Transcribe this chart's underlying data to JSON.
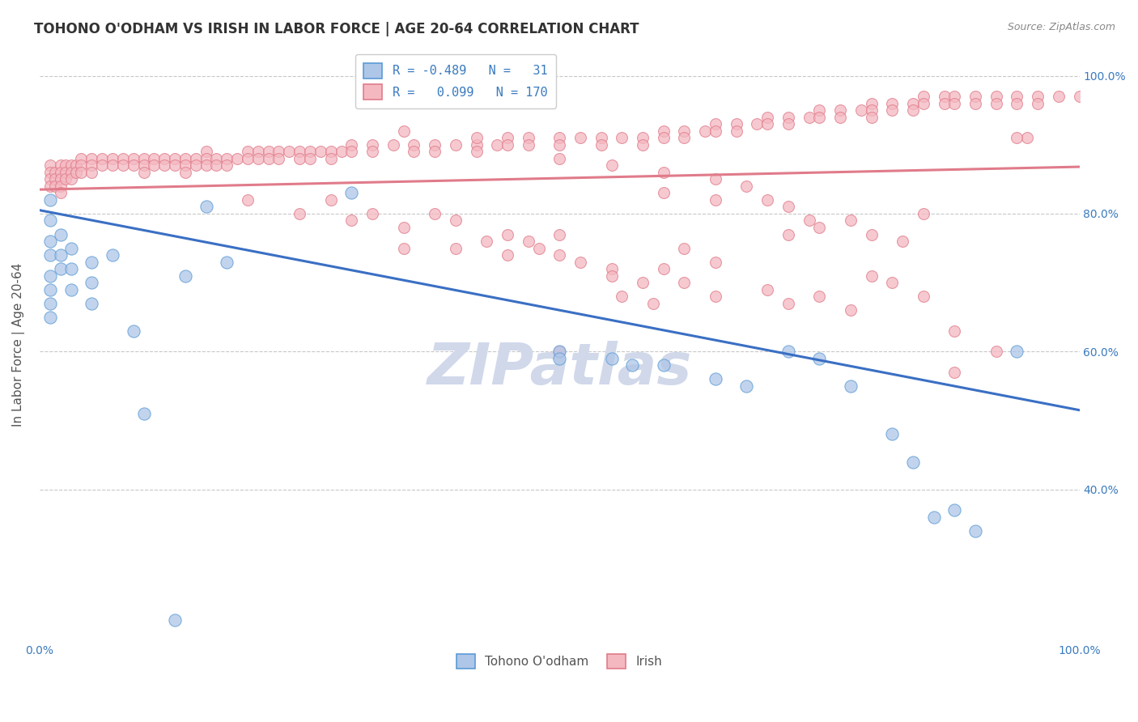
{
  "title": "TOHONO O'ODHAM VS IRISH IN LABOR FORCE | AGE 20-64 CORRELATION CHART",
  "source": "Source: ZipAtlas.com",
  "ylabel": "In Labor Force | Age 20-64",
  "xlim": [
    0.0,
    1.0
  ],
  "ylim": [
    0.18,
    1.04
  ],
  "yticks": [
    0.4,
    0.6,
    0.8,
    1.0
  ],
  "ytick_labels": [
    "40.0%",
    "60.0%",
    "80.0%",
    "100.0%"
  ],
  "watermark": "ZIPatlas",
  "blue_scatter": [
    [
      0.01,
      0.82
    ],
    [
      0.01,
      0.79
    ],
    [
      0.01,
      0.76
    ],
    [
      0.01,
      0.74
    ],
    [
      0.01,
      0.71
    ],
    [
      0.01,
      0.69
    ],
    [
      0.01,
      0.67
    ],
    [
      0.01,
      0.65
    ],
    [
      0.02,
      0.77
    ],
    [
      0.02,
      0.74
    ],
    [
      0.02,
      0.72
    ],
    [
      0.03,
      0.75
    ],
    [
      0.03,
      0.72
    ],
    [
      0.03,
      0.69
    ],
    [
      0.05,
      0.73
    ],
    [
      0.05,
      0.7
    ],
    [
      0.05,
      0.67
    ],
    [
      0.07,
      0.74
    ],
    [
      0.09,
      0.63
    ],
    [
      0.1,
      0.51
    ],
    [
      0.14,
      0.71
    ],
    [
      0.16,
      0.81
    ],
    [
      0.18,
      0.73
    ],
    [
      0.3,
      0.83
    ],
    [
      0.13,
      0.21
    ],
    [
      0.5,
      0.6
    ],
    [
      0.5,
      0.59
    ],
    [
      0.55,
      0.59
    ],
    [
      0.57,
      0.58
    ],
    [
      0.6,
      0.58
    ],
    [
      0.65,
      0.56
    ],
    [
      0.68,
      0.55
    ],
    [
      0.72,
      0.6
    ],
    [
      0.75,
      0.59
    ],
    [
      0.78,
      0.55
    ],
    [
      0.82,
      0.48
    ],
    [
      0.84,
      0.44
    ],
    [
      0.86,
      0.36
    ],
    [
      0.88,
      0.37
    ],
    [
      0.9,
      0.34
    ],
    [
      0.94,
      0.6
    ]
  ],
  "pink_scatter": [
    [
      0.01,
      0.87
    ],
    [
      0.01,
      0.86
    ],
    [
      0.01,
      0.85
    ],
    [
      0.01,
      0.84
    ],
    [
      0.015,
      0.86
    ],
    [
      0.015,
      0.85
    ],
    [
      0.015,
      0.84
    ],
    [
      0.02,
      0.87
    ],
    [
      0.02,
      0.86
    ],
    [
      0.02,
      0.85
    ],
    [
      0.02,
      0.84
    ],
    [
      0.02,
      0.83
    ],
    [
      0.025,
      0.87
    ],
    [
      0.025,
      0.86
    ],
    [
      0.025,
      0.85
    ],
    [
      0.03,
      0.87
    ],
    [
      0.03,
      0.86
    ],
    [
      0.03,
      0.85
    ],
    [
      0.035,
      0.87
    ],
    [
      0.035,
      0.86
    ],
    [
      0.04,
      0.88
    ],
    [
      0.04,
      0.87
    ],
    [
      0.04,
      0.86
    ],
    [
      0.05,
      0.88
    ],
    [
      0.05,
      0.87
    ],
    [
      0.05,
      0.86
    ],
    [
      0.06,
      0.88
    ],
    [
      0.06,
      0.87
    ],
    [
      0.07,
      0.88
    ],
    [
      0.07,
      0.87
    ],
    [
      0.08,
      0.88
    ],
    [
      0.08,
      0.87
    ],
    [
      0.09,
      0.88
    ],
    [
      0.09,
      0.87
    ],
    [
      0.1,
      0.88
    ],
    [
      0.1,
      0.87
    ],
    [
      0.1,
      0.86
    ],
    [
      0.11,
      0.88
    ],
    [
      0.11,
      0.87
    ],
    [
      0.12,
      0.88
    ],
    [
      0.12,
      0.87
    ],
    [
      0.13,
      0.88
    ],
    [
      0.13,
      0.87
    ],
    [
      0.14,
      0.88
    ],
    [
      0.14,
      0.87
    ],
    [
      0.14,
      0.86
    ],
    [
      0.15,
      0.88
    ],
    [
      0.15,
      0.87
    ],
    [
      0.16,
      0.89
    ],
    [
      0.16,
      0.88
    ],
    [
      0.16,
      0.87
    ],
    [
      0.17,
      0.88
    ],
    [
      0.17,
      0.87
    ],
    [
      0.18,
      0.88
    ],
    [
      0.18,
      0.87
    ],
    [
      0.19,
      0.88
    ],
    [
      0.2,
      0.89
    ],
    [
      0.2,
      0.88
    ],
    [
      0.21,
      0.89
    ],
    [
      0.21,
      0.88
    ],
    [
      0.22,
      0.89
    ],
    [
      0.22,
      0.88
    ],
    [
      0.23,
      0.89
    ],
    [
      0.23,
      0.88
    ],
    [
      0.24,
      0.89
    ],
    [
      0.25,
      0.89
    ],
    [
      0.25,
      0.88
    ],
    [
      0.26,
      0.89
    ],
    [
      0.26,
      0.88
    ],
    [
      0.27,
      0.89
    ],
    [
      0.28,
      0.89
    ],
    [
      0.28,
      0.88
    ],
    [
      0.29,
      0.89
    ],
    [
      0.3,
      0.9
    ],
    [
      0.3,
      0.89
    ],
    [
      0.32,
      0.9
    ],
    [
      0.32,
      0.89
    ],
    [
      0.34,
      0.9
    ],
    [
      0.36,
      0.9
    ],
    [
      0.36,
      0.89
    ],
    [
      0.38,
      0.9
    ],
    [
      0.38,
      0.89
    ],
    [
      0.4,
      0.9
    ],
    [
      0.42,
      0.9
    ],
    [
      0.42,
      0.89
    ],
    [
      0.44,
      0.9
    ],
    [
      0.45,
      0.91
    ],
    [
      0.45,
      0.9
    ],
    [
      0.47,
      0.91
    ],
    [
      0.47,
      0.9
    ],
    [
      0.5,
      0.91
    ],
    [
      0.5,
      0.9
    ],
    [
      0.52,
      0.91
    ],
    [
      0.54,
      0.91
    ],
    [
      0.54,
      0.9
    ],
    [
      0.56,
      0.91
    ],
    [
      0.58,
      0.91
    ],
    [
      0.58,
      0.9
    ],
    [
      0.6,
      0.92
    ],
    [
      0.6,
      0.91
    ],
    [
      0.62,
      0.92
    ],
    [
      0.62,
      0.91
    ],
    [
      0.64,
      0.92
    ],
    [
      0.65,
      0.93
    ],
    [
      0.65,
      0.92
    ],
    [
      0.67,
      0.93
    ],
    [
      0.67,
      0.92
    ],
    [
      0.69,
      0.93
    ],
    [
      0.7,
      0.94
    ],
    [
      0.7,
      0.93
    ],
    [
      0.72,
      0.94
    ],
    [
      0.72,
      0.93
    ],
    [
      0.74,
      0.94
    ],
    [
      0.75,
      0.95
    ],
    [
      0.75,
      0.94
    ],
    [
      0.77,
      0.95
    ],
    [
      0.77,
      0.94
    ],
    [
      0.79,
      0.95
    ],
    [
      0.8,
      0.96
    ],
    [
      0.8,
      0.95
    ],
    [
      0.8,
      0.94
    ],
    [
      0.82,
      0.96
    ],
    [
      0.82,
      0.95
    ],
    [
      0.84,
      0.96
    ],
    [
      0.84,
      0.95
    ],
    [
      0.85,
      0.97
    ],
    [
      0.85,
      0.96
    ],
    [
      0.87,
      0.97
    ],
    [
      0.87,
      0.96
    ],
    [
      0.88,
      0.97
    ],
    [
      0.88,
      0.96
    ],
    [
      0.9,
      0.97
    ],
    [
      0.9,
      0.96
    ],
    [
      0.92,
      0.97
    ],
    [
      0.92,
      0.96
    ],
    [
      0.94,
      0.97
    ],
    [
      0.94,
      0.96
    ],
    [
      0.96,
      0.97
    ],
    [
      0.96,
      0.96
    ],
    [
      0.98,
      0.97
    ],
    [
      1.0,
      0.97
    ],
    [
      0.35,
      0.92
    ],
    [
      0.42,
      0.91
    ],
    [
      0.5,
      0.88
    ],
    [
      0.55,
      0.87
    ],
    [
      0.6,
      0.86
    ],
    [
      0.6,
      0.83
    ],
    [
      0.65,
      0.85
    ],
    [
      0.65,
      0.82
    ],
    [
      0.68,
      0.84
    ],
    [
      0.7,
      0.82
    ],
    [
      0.72,
      0.81
    ],
    [
      0.72,
      0.77
    ],
    [
      0.74,
      0.79
    ],
    [
      0.75,
      0.78
    ],
    [
      0.78,
      0.79
    ],
    [
      0.8,
      0.77
    ],
    [
      0.83,
      0.76
    ],
    [
      0.85,
      0.8
    ],
    [
      0.88,
      0.57
    ],
    [
      0.5,
      0.6
    ],
    [
      0.56,
      0.68
    ],
    [
      0.59,
      0.67
    ],
    [
      0.62,
      0.75
    ],
    [
      0.65,
      0.73
    ],
    [
      0.4,
      0.79
    ],
    [
      0.45,
      0.77
    ],
    [
      0.48,
      0.75
    ],
    [
      0.5,
      0.74
    ],
    [
      0.52,
      0.73
    ],
    [
      0.55,
      0.72
    ],
    [
      0.55,
      0.71
    ],
    [
      0.58,
      0.7
    ],
    [
      0.6,
      0.72
    ],
    [
      0.62,
      0.7
    ],
    [
      0.65,
      0.68
    ],
    [
      0.7,
      0.69
    ],
    [
      0.72,
      0.67
    ],
    [
      0.75,
      0.68
    ],
    [
      0.78,
      0.66
    ],
    [
      0.8,
      0.71
    ],
    [
      0.82,
      0.7
    ],
    [
      0.85,
      0.68
    ],
    [
      0.88,
      0.63
    ],
    [
      0.92,
      0.6
    ],
    [
      0.95,
      0.91
    ],
    [
      0.2,
      0.82
    ],
    [
      0.25,
      0.8
    ],
    [
      0.28,
      0.82
    ],
    [
      0.3,
      0.79
    ],
    [
      0.32,
      0.8
    ],
    [
      0.35,
      0.78
    ],
    [
      0.38,
      0.8
    ],
    [
      0.35,
      0.75
    ],
    [
      0.4,
      0.75
    ],
    [
      0.43,
      0.76
    ],
    [
      0.45,
      0.74
    ],
    [
      0.47,
      0.76
    ],
    [
      0.5,
      0.77
    ],
    [
      0.94,
      0.91
    ]
  ],
  "blue_line_x": [
    0.0,
    1.0
  ],
  "blue_line_y": [
    0.805,
    0.515
  ],
  "pink_line_x": [
    0.0,
    1.0
  ],
  "pink_line_y": [
    0.835,
    0.868
  ],
  "scatter_size_blue": 120,
  "scatter_size_pink": 100,
  "blue_fill": "#aec6e8",
  "blue_edge": "#5b9bd5",
  "pink_fill": "#f4b8c1",
  "pink_edge": "#e07b8a",
  "blue_line_color": "#3a6fc4",
  "pink_line_color": "#e07b8a",
  "grid_color": "#c8c8c8",
  "background_color": "#ffffff",
  "title_fontsize": 12,
  "axis_label_fontsize": 11,
  "tick_fontsize": 10,
  "source_fontsize": 9,
  "watermark_color": "#d0d8ea",
  "watermark_fontsize": 52
}
